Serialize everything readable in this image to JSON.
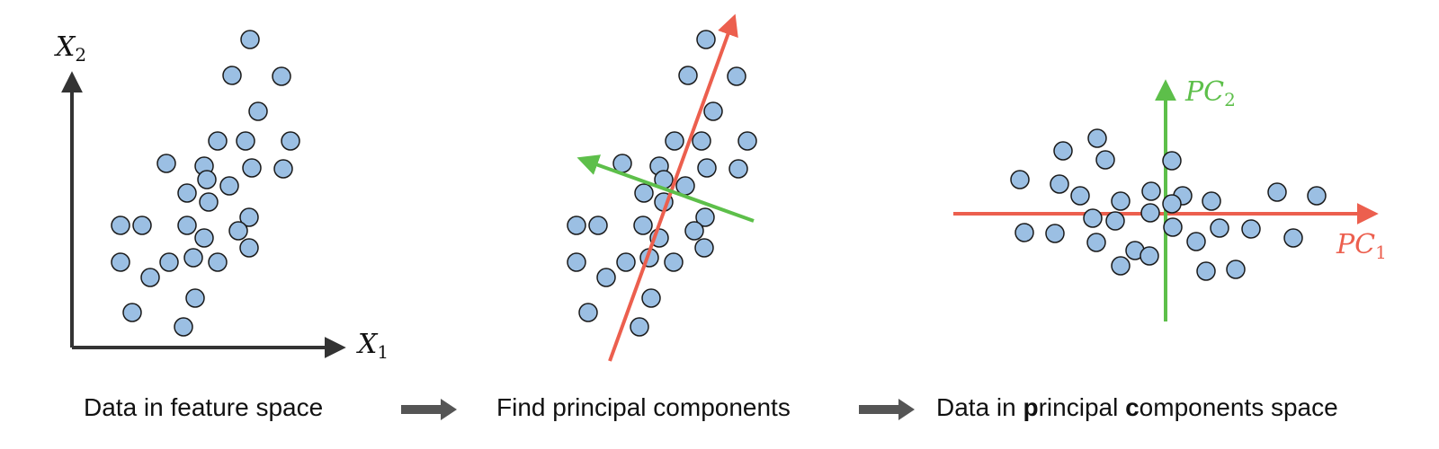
{
  "colors": {
    "point_fill": "#9bbfe3",
    "point_stroke": "#1a1a1a",
    "axis": "#333333",
    "pc1": "#ec5f4e",
    "pc2": "#5dbf4a",
    "flow_arrow": "#555555",
    "caption": "#111111"
  },
  "panels": {
    "feature_space": {
      "x_axis_label": {
        "base": "X",
        "sub": "1"
      },
      "y_axis_label": {
        "base": "X",
        "sub": "2"
      }
    },
    "find_components": {},
    "pc_space": {
      "pc1_label": {
        "base": "PC",
        "sub": "1"
      },
      "pc2_label": {
        "base": "PC",
        "sub": "2"
      }
    }
  },
  "captions": {
    "step1": "Data in feature space",
    "step2": "Find principal components",
    "step3": {
      "prefix": "Data in ",
      "bold1": "p",
      "mid": "rincipal ",
      "bold2": "c",
      "suffix": "omponents space"
    }
  }
}
